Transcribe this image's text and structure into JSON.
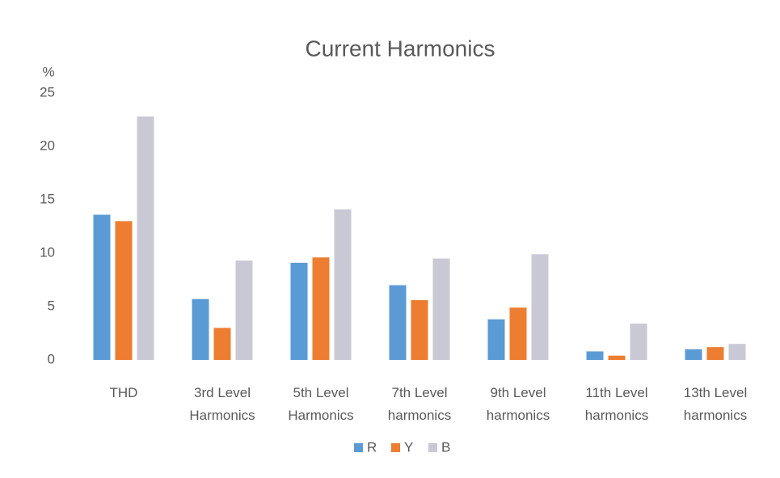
{
  "chart_data": {
    "type": "bar",
    "title": "Current Harmonics",
    "y_label": "%",
    "categories": [
      "THD",
      "3rd Level Harmonics",
      "5th Level Harmonics",
      "7th Level harmonics",
      "9th Level harmonics",
      "11th Level harmonics",
      "13th Level harmonics"
    ],
    "series": [
      {
        "name": "R",
        "color": "#5b9bd5",
        "values": [
          13.6,
          5.7,
          9.1,
          7.0,
          3.8,
          0.8,
          1.0
        ]
      },
      {
        "name": "Y",
        "color": "#ed7d31",
        "values": [
          13.0,
          3.0,
          9.6,
          5.6,
          4.9,
          0.4,
          1.2
        ]
      },
      {
        "name": "B",
        "color": "#c9c9d6",
        "values": [
          22.8,
          9.3,
          14.1,
          9.5,
          9.9,
          3.4,
          1.5
        ]
      }
    ],
    "ylim": [
      0,
      25
    ],
    "yticks": [
      0,
      5,
      10,
      15,
      20,
      25
    ],
    "grid": false,
    "legend": "bottom"
  }
}
